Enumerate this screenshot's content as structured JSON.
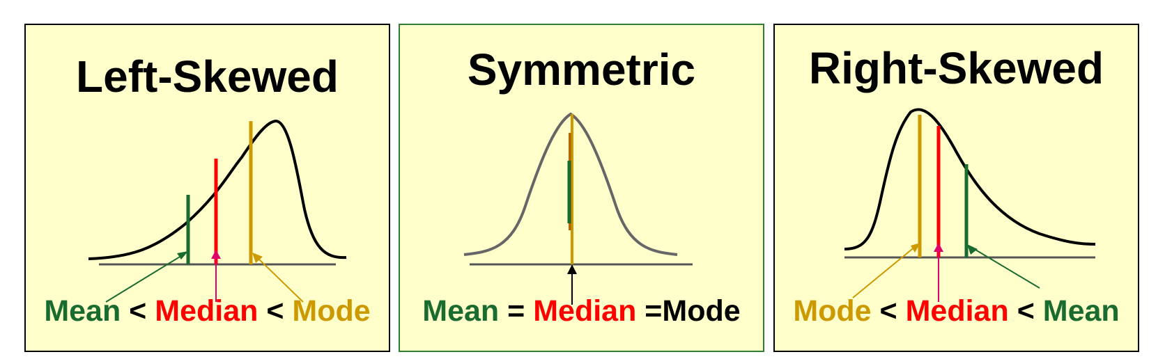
{
  "colors": {
    "mean": "#1a6b2f",
    "median": "#ff0000",
    "mode": "#cc9900",
    "background": "#ffffcc",
    "symmetric_border": "#2e7d32"
  },
  "panels": {
    "left": {
      "title": "Left-Skewed",
      "caption": {
        "mean": "Mean",
        "lt1": " < ",
        "median": "Median",
        "lt2": " < ",
        "mode": "Mode"
      }
    },
    "middle": {
      "title": "Symmetric",
      "caption": {
        "mean": "Mean",
        "eq1": " = ",
        "median": "Median",
        "eq2": " =",
        "mode": "Mode"
      }
    },
    "right": {
      "title": "Right-Skewed",
      "caption": {
        "mode": "Mode",
        "lt1": " < ",
        "median": "Median",
        "lt2": " < ",
        "mean": "Mean"
      }
    }
  }
}
